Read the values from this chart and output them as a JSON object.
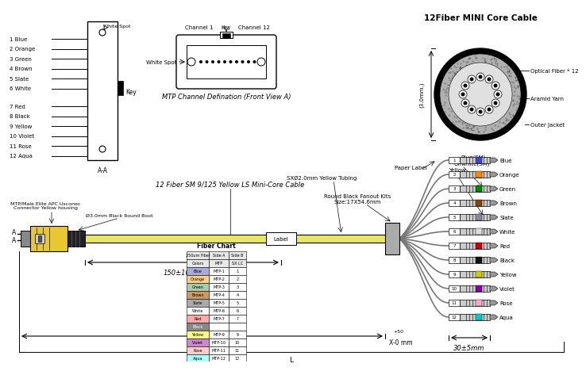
{
  "bg_color": "#ffffff",
  "title": "12Fiber MINI Core Cable",
  "fiber_colors_left": [
    "1 Blue",
    "2 Orange",
    "3 Green",
    "4 Brown",
    "5 Slate",
    "6 White",
    "7 Red",
    "8 Black",
    "9 Yellow",
    "10 Violet",
    "11 Rose",
    "12 Aqua"
  ],
  "fiber_colors_right": [
    "Blue",
    "Orange",
    "Green",
    "Brown",
    "Slate",
    "White",
    "Red",
    "Black",
    "Yellow",
    "Violet",
    "Rose",
    "Aqua"
  ],
  "fiber_rgb": [
    "#4444cc",
    "#ff8800",
    "#008800",
    "#884400",
    "#888899",
    "#dddddd",
    "#cc0000",
    "#111111",
    "#cccc00",
    "#8800aa",
    "#ffaacc",
    "#00cccc"
  ],
  "table_headers": [
    "250um Fiber\nColors",
    "Side A\nMTP",
    "Side B\nSX LC"
  ],
  "table_rows": [
    [
      "Blue",
      "MTP-1",
      "1"
    ],
    [
      "Orange",
      "MTP-2",
      "2"
    ],
    [
      "Green",
      "MTP-3",
      "3"
    ],
    [
      "Brown",
      "MTP-4",
      "4"
    ],
    [
      "Slate",
      "MTP-5",
      "5"
    ],
    [
      "White",
      "MTP-6",
      "6"
    ],
    [
      "Red",
      "MTP-7",
      "7"
    ],
    [
      "Black",
      "MTP-8",
      "8"
    ],
    [
      "Yellow",
      "MTP-9",
      "9"
    ],
    [
      "Violet",
      "MTP-10",
      "10"
    ],
    [
      "Rose",
      "MTP-11",
      "11"
    ],
    [
      "Aqua",
      "MTP-12",
      "12"
    ]
  ],
  "cable_label": "12 Fiber SM 9/125 Yellow LS Mini-Core Cable",
  "connector_label": "MTP/Male Elite APC Usconec\nConnector Yellow housing",
  "boot_label": "Ø3.0mm Black Round Boot",
  "fanout_label": "Round Black Fanout Kits\nSize:17X54.6mm",
  "tubing_label": "SXØ2.0mm Yellow Tubing",
  "paper_label": "Paper Label",
  "dim1": "150±10mm",
  "dim2": "30±5mm",
  "dim3": "X-0 mm",
  "dim3b": "+50",
  "cable_size": "(3.0mm.)",
  "optical_fiber_label": "Optical Fiber * 12",
  "aramid_label": "Aramid Yarn",
  "outer_jacket_label": "Outer Jacket",
  "channel1_label": "Channel 1",
  "channel12_label": "Channel 12",
  "key_label": "Key",
  "white_spot_label": "White Spot",
  "mtp_label": "MTP Channel Defination (Front View A)",
  "aa_label": "A-A",
  "sm_label": "Blue(SM)",
  "offwhite_label": "Offwhite(SM)",
  "yellow_label": "Yellow",
  "label_text": "Label",
  "L_label": "L"
}
